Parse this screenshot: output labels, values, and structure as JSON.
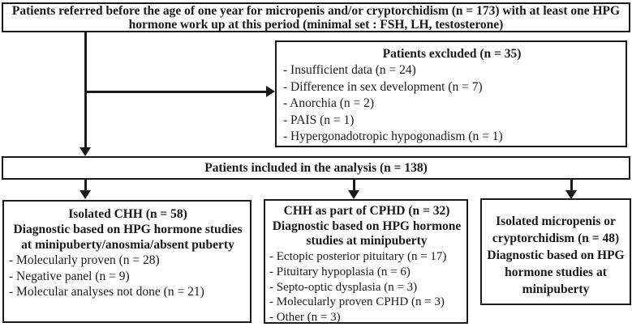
{
  "colors": {
    "border": "#1a1a1a",
    "text": "#1a1a1a",
    "background": "#ffffff"
  },
  "top_box": {
    "lines": [
      "Patients referred before the age of one year for micropenis and/or cryptorchidism (n = 173) with at least one HPG",
      "hormone work up at this period (minimal set : FSH, LH, testosterone)"
    ]
  },
  "excluded_box": {
    "title": "Patients excluded (n = 35)",
    "items": [
      "- Insufficient data (n = 24)",
      "- Difference in sex development (n = 7)",
      "- Anorchia (n = 2)",
      "- PAIS (n = 1)",
      "- Hypergonadotropic hypogonadism (n = 1)"
    ]
  },
  "included_bar": {
    "label": "Patients included in the analysis (n = 138)"
  },
  "left_box": {
    "title_lines": [
      "Isolated CHH (n = 58)",
      "Diagnostic based on HPG hormone studies",
      "at minipuberty/anosmia/absent puberty"
    ],
    "items": [
      "- Molecularly proven (n = 28)",
      "- Negative panel (n = 9)",
      "- Molecular analyses not done (n = 21)"
    ]
  },
  "middle_box": {
    "title_lines": [
      "CHH as part of CPHD (n = 32)",
      "Diagnostic based on HPG hormone",
      "studies at minipuberty"
    ],
    "items": [
      "- Ectopic posterior pituitary (n = 17)",
      "- Pituitary hypoplasia (n = 6)",
      "- Septo-optic dysplasia (n = 3)",
      "- Molecularly proven CPHD (n = 3)",
      "- Other (n = 3)"
    ]
  },
  "right_box": {
    "title_lines": [
      "Isolated micropenis or",
      "cryptorchidism (n = 48)",
      "Diagnostic based on HPG",
      "hormone studies at",
      "minipuberty"
    ]
  }
}
